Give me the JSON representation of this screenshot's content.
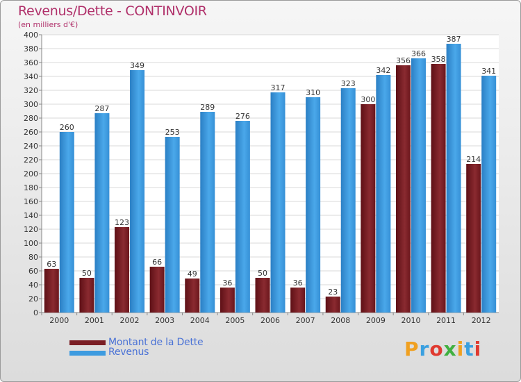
{
  "chart_data": {
    "type": "bar",
    "title": "Revenus/Dette - CONTINVOIR",
    "subtitle": "(en milliers d'€)",
    "categories": [
      "2000",
      "2001",
      "2002",
      "2003",
      "2004",
      "2005",
      "2006",
      "2007",
      "2008",
      "2009",
      "2010",
      "2011",
      "2012"
    ],
    "series": [
      {
        "name": "Montant de la Dette",
        "color": "#7a1e24",
        "values": [
          63,
          50,
          123,
          66,
          49,
          36,
          50,
          36,
          23,
          300,
          356,
          358,
          214
        ]
      },
      {
        "name": "Revenus",
        "color": "#3d9be0",
        "values": [
          260,
          287,
          349,
          253,
          289,
          276,
          317,
          310,
          323,
          342,
          366,
          387,
          341
        ]
      }
    ],
    "yticks": [
      0,
      20,
      40,
      60,
      80,
      100,
      120,
      140,
      160,
      180,
      200,
      220,
      240,
      260,
      280,
      300,
      320,
      340,
      360,
      380,
      400
    ],
    "ylim": [
      0,
      400
    ],
    "grid": true,
    "legend_position": "bottom-left"
  },
  "logo": {
    "letters": [
      "P",
      "r",
      "o",
      "x",
      "i",
      "t",
      "i"
    ],
    "colors": [
      "#f0a020",
      "#3aa0e0",
      "#e03a30",
      "#40b040",
      "#f0a020",
      "#3aa0e0",
      "#e03a30"
    ]
  }
}
